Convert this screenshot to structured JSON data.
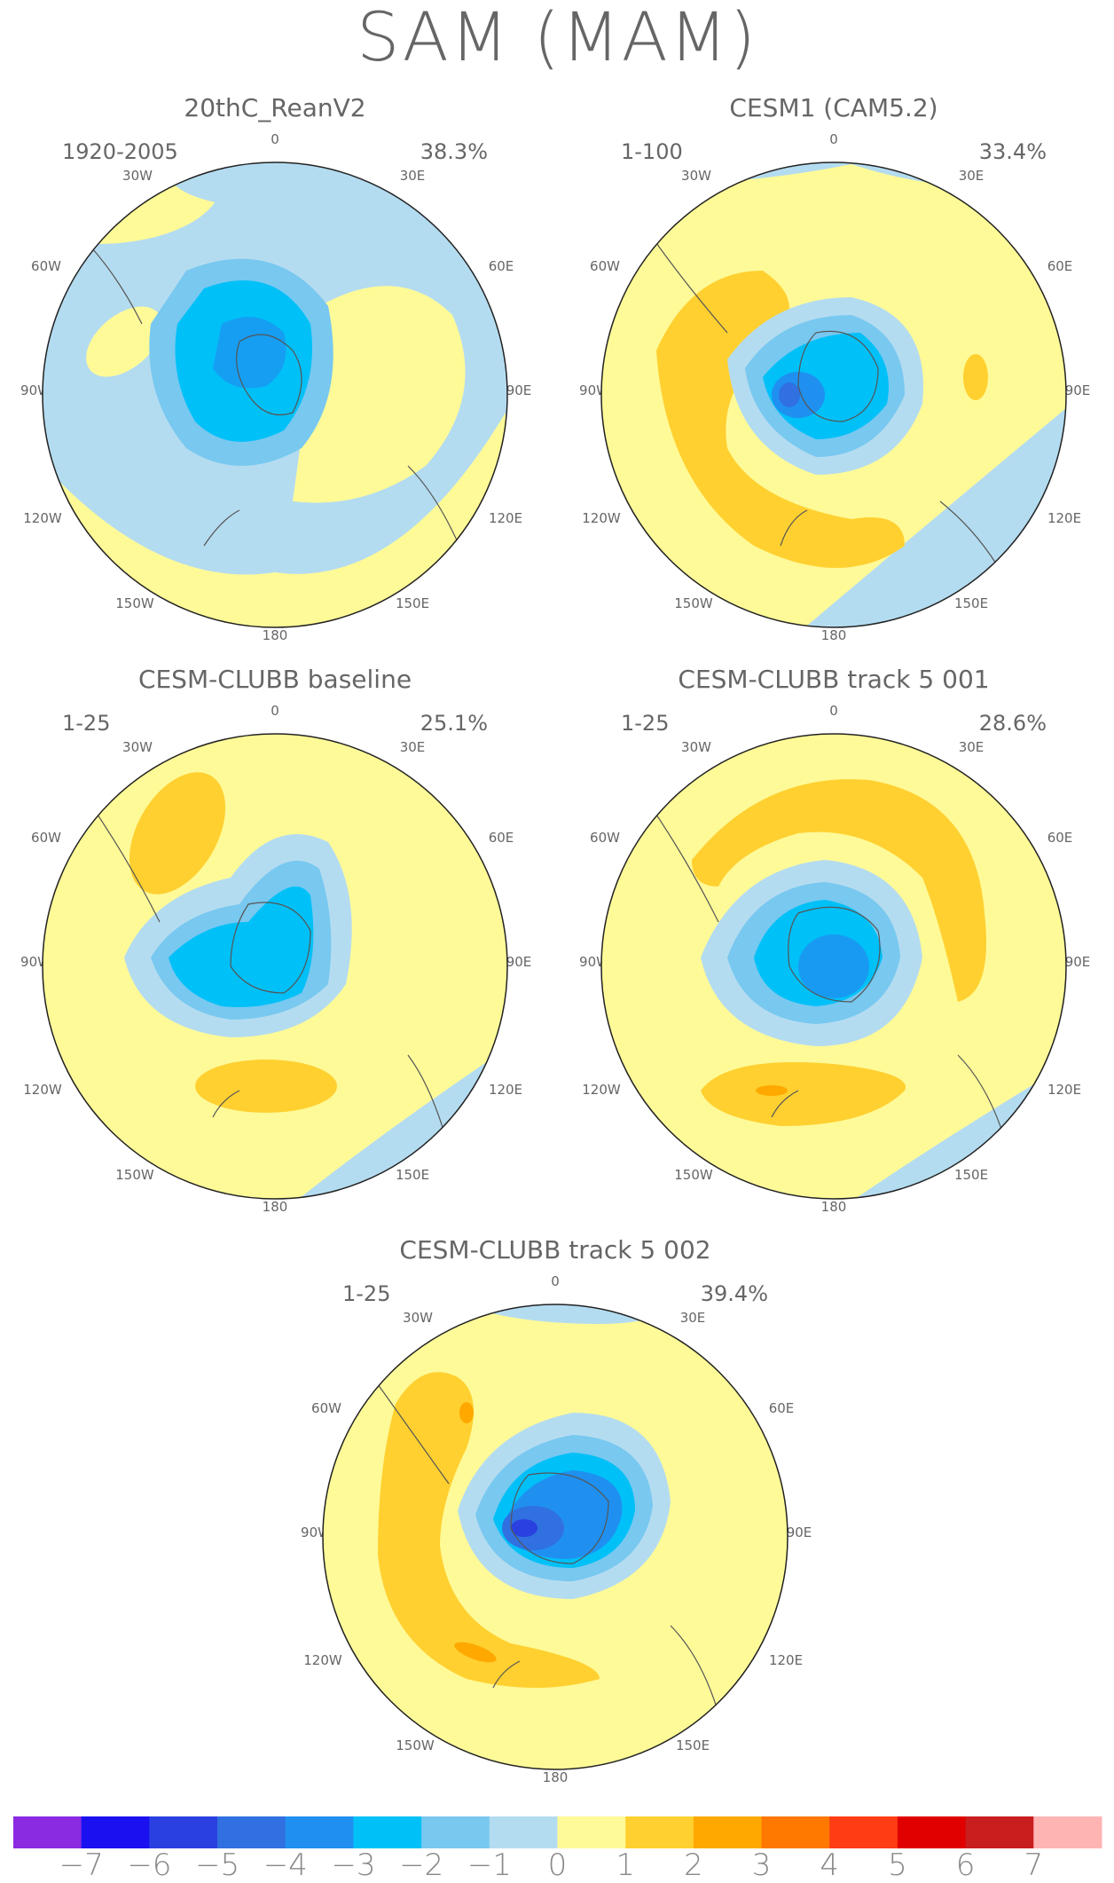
{
  "title": "SAM (MAM)",
  "lon_labels": {
    "top": "0",
    "tr": "30E",
    "r1": "60E",
    "r2": "90E",
    "r3": "120E",
    "br": "150E",
    "bottom": "180",
    "bl": "150W",
    "l3": "120W",
    "l2": "90W",
    "l1": "60W",
    "tl": "30W"
  },
  "panels": [
    {
      "title": "20thC_ReanV2",
      "years": "1920-2005",
      "pct": "38.3%",
      "min": -3
    },
    {
      "title": "CESM1 (CAM5.2)",
      "years": "1-100",
      "pct": "33.4%",
      "min": -4
    },
    {
      "title": "CESM-CLUBB baseline",
      "years": "1-25",
      "pct": "25.1%",
      "min": -3
    },
    {
      "title": "CESM-CLUBB track 5 001",
      "years": "1-25",
      "pct": "28.6%",
      "min": -4
    },
    {
      "title": "CESM-CLUBB track 5 002",
      "years": "1-25",
      "pct": "39.4%",
      "min": -5
    }
  ],
  "colorbar": {
    "labels": [
      "−7",
      "−6",
      "−5",
      "−4",
      "−3",
      "−2",
      "−1",
      "0",
      "1",
      "2",
      "3",
      "4",
      "5",
      "6",
      "7"
    ],
    "colors": [
      "#8a2be2",
      "#1a10f0",
      "#2a40e0",
      "#3070e0",
      "#1f90f0",
      "#00c0f8",
      "#78c8f0",
      "#b4dcf0",
      "#fffa98",
      "#ffd030",
      "#ffa800",
      "#ff7800",
      "#ff3c14",
      "#e00000",
      "#c81e1e",
      "#ffb4b4"
    ]
  }
}
